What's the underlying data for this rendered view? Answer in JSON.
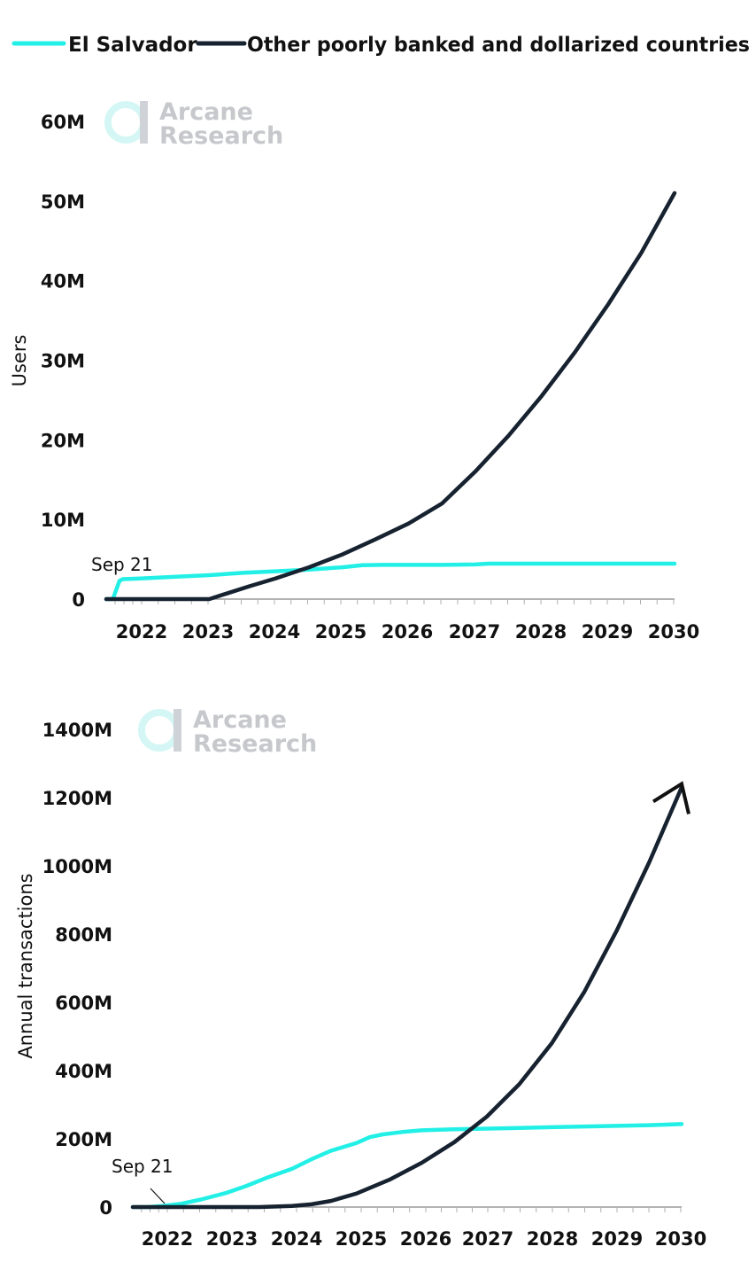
{
  "legend": [
    {
      "label": "El Salvador",
      "color": "#22f0e6"
    },
    {
      "label": "Other poorly banked and dollarized countries",
      "color": "#172230"
    }
  ],
  "watermark": {
    "line1": "Arcane",
    "line2": "Research"
  },
  "chart_data": [
    {
      "type": "line",
      "ylabel": "Users",
      "xlabel": "",
      "x_ticks": [
        "2022",
        "2023",
        "2024",
        "2025",
        "2026",
        "2027",
        "2028",
        "2029",
        "2030"
      ],
      "y_ticks": [
        "0",
        "10M",
        "20M",
        "30M",
        "40M",
        "50M",
        "60M"
      ],
      "y_tick_values": [
        0,
        10,
        20,
        30,
        40,
        50,
        60
      ],
      "ylim": [
        0,
        60
      ],
      "xlim": [
        2021.45,
        2030.0
      ],
      "annotation": {
        "text": "Sep 21",
        "x": 2021.7,
        "y": 0
      },
      "series": [
        {
          "name": "El Salvador",
          "color": "#22f0e6",
          "x": [
            2021.45,
            2021.55,
            2021.65,
            2021.7,
            2022.0,
            2022.5,
            2023.0,
            2023.5,
            2024.0,
            2024.5,
            2025.0,
            2025.3,
            2025.6,
            2026.0,
            2026.5,
            2027.0,
            2027.2,
            2028.0,
            2029.0,
            2030.0
          ],
          "values": [
            0,
            0,
            2.3,
            2.5,
            2.6,
            2.8,
            3.0,
            3.3,
            3.5,
            3.7,
            4.0,
            4.25,
            4.3,
            4.3,
            4.3,
            4.35,
            4.45,
            4.45,
            4.45,
            4.45
          ]
        },
        {
          "name": "Other poorly banked and dollarized countries",
          "color": "#172230",
          "x": [
            2021.45,
            2022.0,
            2022.5,
            2023.0,
            2023.3,
            2023.6,
            2024.0,
            2024.5,
            2025.0,
            2025.5,
            2026.0,
            2026.5,
            2027.0,
            2027.5,
            2028.0,
            2028.5,
            2029.0,
            2029.5,
            2030.0
          ],
          "values": [
            0,
            0,
            0,
            0,
            0.8,
            1.6,
            2.6,
            4.0,
            5.6,
            7.5,
            9.5,
            12.0,
            16.0,
            20.5,
            25.5,
            31.0,
            37.0,
            43.5,
            51.0
          ]
        }
      ]
    },
    {
      "type": "line",
      "ylabel": "Annual transactions",
      "xlabel": "",
      "x_ticks": [
        "2022",
        "2023",
        "2024",
        "2025",
        "2026",
        "2027",
        "2028",
        "2029",
        "2030"
      ],
      "y_ticks": [
        "0",
        "200M",
        "400M",
        "600M",
        "800M",
        "1000M",
        "1200M",
        "1400M"
      ],
      "y_tick_values": [
        0,
        200,
        400,
        600,
        800,
        1000,
        1200,
        1400
      ],
      "ylim": [
        0,
        1400
      ],
      "xlim": [
        2021.55,
        2030.0
      ],
      "annotation": {
        "text": "Sep 21",
        "x": 2021.9,
        "y": 0
      },
      "series": [
        {
          "name": "El Salvador",
          "color": "#22f0e6",
          "x": [
            2021.55,
            2021.8,
            2022.0,
            2022.3,
            2022.6,
            2023.0,
            2023.3,
            2023.6,
            2024.0,
            2024.3,
            2024.6,
            2025.0,
            2025.2,
            2025.4,
            2025.7,
            2026.0,
            2026.5,
            2027.0,
            2027.5,
            2028.0,
            2028.5,
            2029.0,
            2029.5,
            2030.0
          ],
          "values": [
            0,
            0,
            3,
            10,
            22,
            42,
            62,
            85,
            112,
            140,
            165,
            188,
            205,
            213,
            220,
            225,
            228,
            230,
            232,
            234,
            236,
            238,
            240,
            243
          ]
        },
        {
          "name": "Other poorly banked and dollarized countries",
          "color": "#172230",
          "x": [
            2021.55,
            2022.0,
            2022.5,
            2023.0,
            2023.5,
            2024.0,
            2024.3,
            2024.6,
            2025.0,
            2025.5,
            2026.0,
            2026.5,
            2027.0,
            2027.5,
            2028.0,
            2028.5,
            2029.0,
            2029.5,
            2030.0
          ],
          "values": [
            0,
            0,
            0,
            0,
            0,
            3,
            8,
            18,
            40,
            80,
            130,
            190,
            265,
            360,
            480,
            630,
            810,
            1010,
            1230
          ]
        }
      ]
    }
  ]
}
